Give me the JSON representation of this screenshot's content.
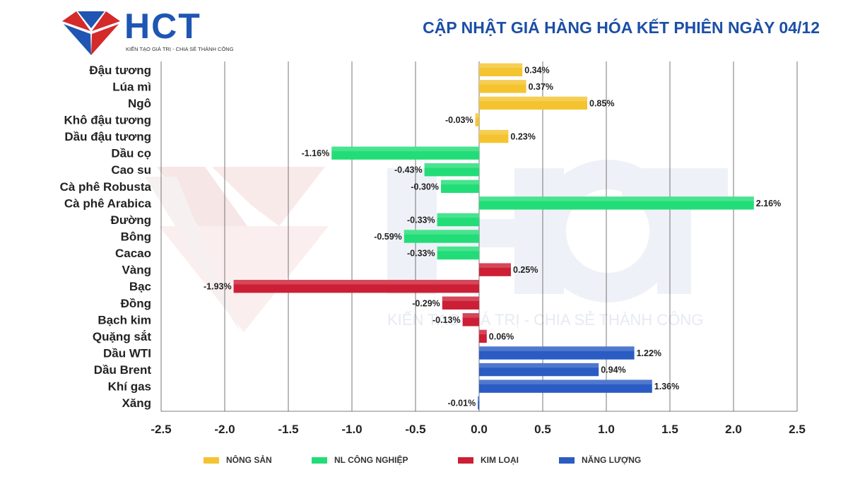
{
  "header": {
    "brand": "HCT",
    "tagline": "KIẾN TẠO GIÁ TRỊ - CHIA SẺ THÀNH CÔNG",
    "title": "CẬP NHẬT GIÁ HÀNG HÓA KẾT PHIÊN NGÀY 04/12"
  },
  "colors": {
    "nong_san": "#f4c430",
    "nl_cong_nghiep": "#22dd77",
    "kim_loai": "#cc1f35",
    "nang_luong": "#2a5cc4",
    "brand_blue": "#1f56b3",
    "brand_red": "#d42a2a"
  },
  "chart_data": {
    "type": "bar",
    "orientation": "horizontal",
    "title": "CẬP NHẬT GIÁ HÀNG HÓA KẾT PHIÊN NGÀY 04/12",
    "xlim": [
      -2.5,
      2.5
    ],
    "x_ticks": [
      "-2.5",
      "-2.0",
      "-1.5",
      "-1.0",
      "-0.5",
      "0.0",
      "0.5",
      "1.0",
      "1.5",
      "2.0",
      "2.5"
    ],
    "grid": "vertical",
    "legend_placement": "bottom",
    "categories": [
      "Đậu tương",
      "Lúa mì",
      "Ngô",
      "Khô đậu tương",
      "Dầu đậu tương",
      "Dầu cọ",
      "Cao su",
      "Cà phê Robusta",
      "Cà phê Arabica",
      "Đường",
      "Bông",
      "Cacao",
      "Vàng",
      "Bạc",
      "Đồng",
      "Bạch kim",
      "Quặng sắt",
      "Dầu WTI",
      "Dầu Brent",
      "Khí gas",
      "Xăng"
    ],
    "values": [
      0.34,
      0.37,
      0.85,
      -0.03,
      0.23,
      -1.16,
      -0.43,
      -0.3,
      2.16,
      -0.33,
      -0.59,
      -0.33,
      0.25,
      -1.93,
      -0.29,
      -0.13,
      0.06,
      1.22,
      0.94,
      1.36,
      -0.01
    ],
    "value_labels": [
      "0.34%",
      "0.37%",
      "0.85%",
      "-0.03%",
      "0.23%",
      "-1.16%",
      "-0.43%",
      "-0.30%",
      "2.16%",
      "-0.33%",
      "-0.59%",
      "-0.33%",
      "0.25%",
      "-1.93%",
      "-0.29%",
      "-0.13%",
      "0.06%",
      "1.22%",
      "0.94%",
      "1.36%",
      "-0.01%"
    ],
    "groups": [
      "nong_san",
      "nong_san",
      "nong_san",
      "nong_san",
      "nong_san",
      "nl_cong_nghiep",
      "nl_cong_nghiep",
      "nl_cong_nghiep",
      "nl_cong_nghiep",
      "nl_cong_nghiep",
      "nl_cong_nghiep",
      "nl_cong_nghiep",
      "kim_loai",
      "kim_loai",
      "kim_loai",
      "kim_loai",
      "kim_loai",
      "nang_luong",
      "nang_luong",
      "nang_luong",
      "nang_luong"
    ],
    "legend": [
      {
        "key": "nong_san",
        "label": "NÔNG SẢN"
      },
      {
        "key": "nl_cong_nghiep",
        "label": "NL CÔNG NGHIỆP"
      },
      {
        "key": "kim_loai",
        "label": "KIM LOẠI"
      },
      {
        "key": "nang_luong",
        "label": "NĂNG LƯỢNG"
      }
    ]
  }
}
